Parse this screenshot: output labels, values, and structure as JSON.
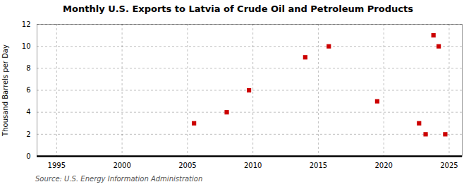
{
  "chart_data": {
    "type": "scatter",
    "title": "Monthly U.S. Exports to Latvia of Crude Oil and Petroleum Products",
    "ylabel": "Thousand Barrels per Day",
    "source": "Source: U.S. Energy Information Administration",
    "x": [
      2005.5,
      2008.0,
      2009.7,
      2014.0,
      2015.8,
      2019.5,
      2022.7,
      2023.2,
      2023.8,
      2024.2,
      2024.7
    ],
    "values": [
      3,
      4,
      6,
      9,
      10,
      5,
      3,
      2,
      11,
      10,
      2
    ],
    "color": "#cc0000",
    "marker": "square",
    "xlim": [
      1993.5,
      2026
    ],
    "ylim": [
      0,
      12
    ],
    "xticks": [
      1995,
      2000,
      2005,
      2010,
      2015,
      2020,
      2025
    ],
    "yticks": [
      0,
      2,
      4,
      6,
      8,
      10,
      12
    ],
    "grid": true
  }
}
